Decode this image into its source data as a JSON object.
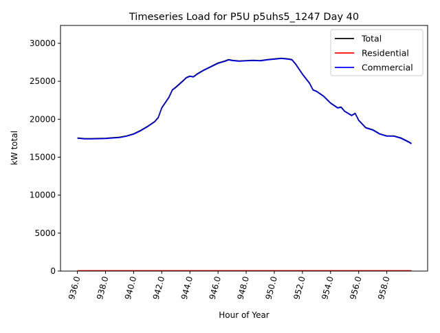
{
  "chart_data": {
    "type": "line",
    "title": "Timeseries Load for P5U p5uhs5_1247  Day 40",
    "xlabel": "Hour of Year",
    "ylabel": "kW total",
    "xlim": [
      934.8,
      960.9
    ],
    "ylim": [
      0,
      32350
    ],
    "xticks": [
      "936.0",
      "938.0",
      "940.0",
      "942.0",
      "944.0",
      "946.0",
      "948.0",
      "950.0",
      "952.0",
      "954.0",
      "956.0",
      "958.0"
    ],
    "xtick_values": [
      936,
      938,
      940,
      942,
      944,
      946,
      948,
      950,
      952,
      954,
      956,
      958
    ],
    "yticks": [
      "0",
      "5000",
      "10000",
      "15000",
      "20000",
      "25000",
      "30000"
    ],
    "ytick_values": [
      0,
      5000,
      10000,
      15000,
      20000,
      25000,
      30000
    ],
    "legend_position": "top-right",
    "x": [
      936,
      936.5,
      937,
      938,
      939,
      939.5,
      940,
      940.5,
      941,
      941.5,
      941.75,
      942,
      942.5,
      942.75,
      943,
      943.5,
      943.75,
      944,
      944.25,
      944.5,
      945,
      945.5,
      946,
      946.5,
      946.75,
      947,
      947.5,
      948,
      948.5,
      949,
      949.5,
      950,
      950.5,
      951,
      951.25,
      951.5,
      952,
      952.5,
      952.75,
      953,
      953.5,
      954,
      954.5,
      954.75,
      955,
      955.5,
      955.75,
      956,
      956.5,
      957,
      957.5,
      958,
      958.5,
      959,
      959.5,
      959.75
    ],
    "series": [
      {
        "name": "Total",
        "color": "#000000",
        "values": [
          17540,
          17450,
          17450,
          17500,
          17630,
          17810,
          18080,
          18530,
          19080,
          19710,
          20250,
          21520,
          22880,
          23880,
          24240,
          25060,
          25500,
          25690,
          25600,
          25960,
          26500,
          26950,
          27410,
          27680,
          27860,
          27770,
          27680,
          27730,
          27770,
          27730,
          27860,
          27950,
          28040,
          27950,
          27860,
          27320,
          25960,
          24780,
          23880,
          23700,
          23060,
          22150,
          21520,
          21610,
          21070,
          20520,
          20790,
          19890,
          18900,
          18620,
          18080,
          17810,
          17810,
          17540,
          17080,
          16810
        ]
      },
      {
        "name": "Residential",
        "color": "#ff0000",
        "values": [
          50,
          50,
          50,
          50,
          50,
          50,
          50,
          50,
          50,
          50,
          50,
          50,
          50,
          50,
          50,
          50,
          50,
          50,
          50,
          50,
          50,
          50,
          50,
          50,
          50,
          50,
          50,
          50,
          50,
          50,
          50,
          50,
          50,
          50,
          50,
          50,
          50,
          50,
          50,
          50,
          50,
          50,
          50,
          50,
          50,
          50,
          50,
          50,
          50,
          50,
          50,
          50,
          50,
          50,
          50,
          50
        ]
      },
      {
        "name": "Commercial",
        "color": "#0000ff",
        "values": [
          17490,
          17400,
          17400,
          17450,
          17580,
          17760,
          18030,
          18480,
          19030,
          19660,
          20200,
          21470,
          22830,
          23830,
          24190,
          25010,
          25450,
          25640,
          25550,
          25910,
          26450,
          26900,
          27360,
          27630,
          27810,
          27720,
          27630,
          27680,
          27720,
          27680,
          27810,
          27900,
          27990,
          27900,
          27810,
          27270,
          25910,
          24730,
          23830,
          23650,
          23010,
          22100,
          21470,
          21560,
          21020,
          20470,
          20740,
          19840,
          18850,
          18570,
          18030,
          17760,
          17760,
          17490,
          17030,
          16760
        ]
      }
    ]
  }
}
